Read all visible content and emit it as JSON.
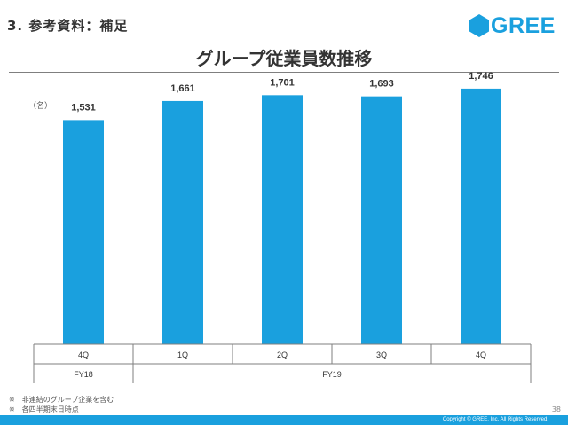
{
  "header": {
    "section_title": "3. 参考資料：補足",
    "logo_text": "GREE",
    "slide_title": "グループ従業員数推移"
  },
  "colors": {
    "accent": "#1aa0de",
    "bar": "#1aa0de",
    "text": "#333333"
  },
  "chart_data": {
    "type": "bar",
    "unit_label": "（名）",
    "categories": [
      "4Q",
      "1Q",
      "2Q",
      "3Q",
      "4Q"
    ],
    "fiscal_years": [
      {
        "label": "FY18",
        "span": 1
      },
      {
        "label": "FY19",
        "span": 4
      }
    ],
    "values": [
      1531,
      1661,
      1701,
      1693,
      1746
    ],
    "data_labels": [
      "1,531",
      "1,661",
      "1,701",
      "1,693",
      "1,746"
    ],
    "ylim": [
      0,
      2000
    ],
    "grid": false,
    "legend": "none"
  },
  "footnotes": [
    "※　非連結のグループ企業を含む",
    "※　各四半期末日時点"
  ],
  "footer": {
    "page_number": "38",
    "copyright": "Copyright © GREE, Inc. All Rights Reserved."
  }
}
